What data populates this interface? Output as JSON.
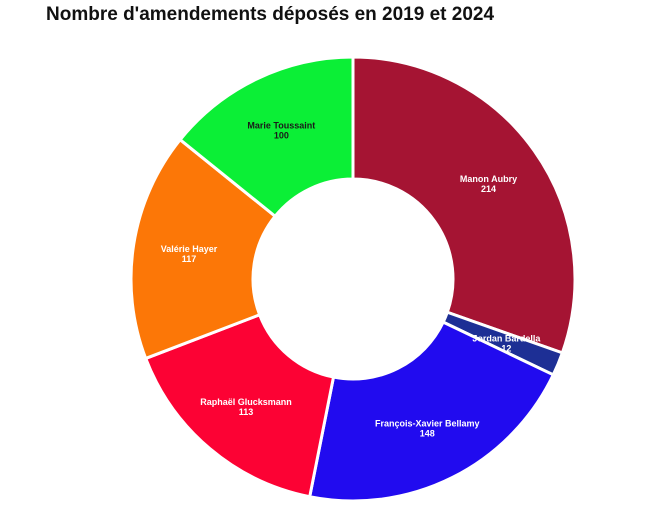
{
  "chart_data": {
    "type": "pie",
    "variant": "donut",
    "title": "Nombre d'amendements déposés en 2019 et 2024",
    "slices": [
      {
        "name": "Manon Aubry",
        "value": 214,
        "color": "#a51433",
        "label_color": "#ffffff"
      },
      {
        "name": "Jordan Bardella",
        "value": 12,
        "color": "#1d2f95",
        "label_color": "#ffffff"
      },
      {
        "name": "François-Xavier Bellamy",
        "value": 148,
        "color": "#210bef",
        "label_color": "#ffffff"
      },
      {
        "name": "Raphaël Glucksmann",
        "value": 113,
        "color": "#fc0234",
        "label_color": "#ffffff"
      },
      {
        "name": "Valérie Hayer",
        "value": 117,
        "color": "#fc7707",
        "label_color": "#ffffff"
      },
      {
        "name": "Marie Toussaint",
        "value": 100,
        "color": "#0bef36",
        "label_color": "#1a1a1a"
      }
    ]
  }
}
